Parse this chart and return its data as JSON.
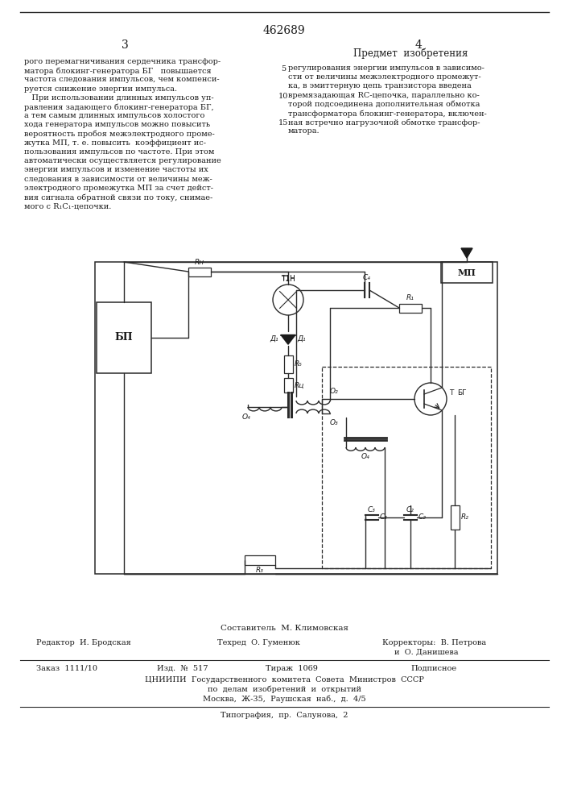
{
  "patent_number": "462689",
  "page_numbers": [
    "3",
    "4"
  ],
  "heading_right": "Предмет  изобретения",
  "text_left_lines": [
    "рого перемагничивания сердечника трансфор-",
    "матора блокинг-генератора БГ   повышается",
    "частота следования импульсов, чем компенси-",
    "руется снижение энергии импульса.",
    "   При использовании длинных импульсов уп-",
    "равления задающего блокинг-генератора БГ,",
    "а тем самым длинных импульсов холостого",
    "хода генератора импульсов можно повысить",
    "вероятность пробоя межэлектродного проме-",
    "жутка МП, т. е. повысить  коэффициент ис-",
    "пользования импульсов по частоте. При этом",
    "автоматически осуществляется регулирование",
    "энергии импульсов и изменение частоты их",
    "следования в зависимости от величины меж-",
    "электродного промежутка МП за счет дейст-",
    "вия сигнала обратной связи по току, снимае-",
    "мого с R₁C₁-цепочки."
  ],
  "text_right_lines": [
    "регулирования энергии импульсов в зависимо-",
    "сти от величины межэлектродного промежут-",
    "ка, в эмиттерную цепь транзистора введена",
    "времязадающая RC-цепочка, параллельно ко-",
    "торой подсоединена дополнительная обмотка",
    "трансформатора блокинг-генератора, включен-",
    "ная встречно нагрузочной обмотке трансфор-",
    "матора."
  ],
  "sestavitel": "Составитель  М. Климовская",
  "footer_editor": "Редактор  И. Бродская",
  "footer_techred": "Техред  О. Гуменюк",
  "footer_correctors": "Корректоры:  В. Петрова",
  "footer_correctors2": "и  О. Данишева",
  "footer_order": "Заказ  1111/10",
  "footer_izd": "Изд.  №  517",
  "footer_tirazh": "Тираж  1069",
  "footer_podpisnoe": "Подписное",
  "footer_tsniipi": "ЦНИИПИ  Государственного  комитета  Совета  Министров  СССР",
  "footer_dela": "по  делам  изобретений  и  открытий",
  "footer_moscow": "Москва,  Ж-35,  Раушская  наб.,  д.  4/5",
  "footer_tipografiya": "Типография,  пр.  Салунова,  2",
  "bg_color": "#ffffff",
  "text_color": "#1a1a1a",
  "line_color": "#2a2a2a"
}
